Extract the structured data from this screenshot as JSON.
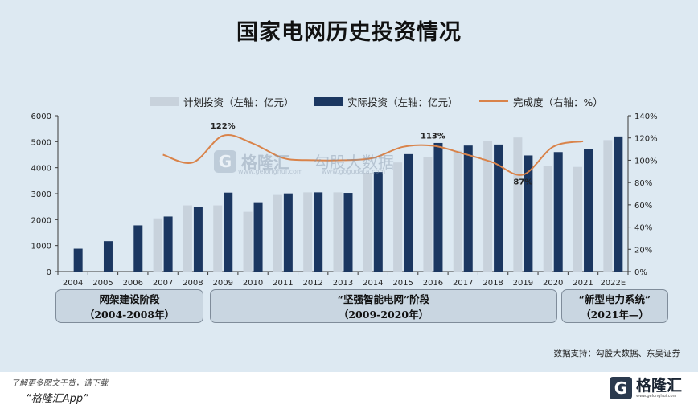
{
  "title": "国家电网历史投资情况",
  "legend": {
    "plan": "计划投资（左轴：亿元）",
    "actual": "实际投资（左轴：亿元）",
    "rate": "完成度（右轴：%）"
  },
  "colors": {
    "plan": "#c8d2dc",
    "actual": "#1b3761",
    "rate": "#d9834a",
    "panel": "#dde9f2"
  },
  "watermark": {
    "logo": "G",
    "brand": "格隆汇",
    "brand_url": "www.gelonghui.com",
    "partner": "勾股大数据",
    "partner_url": "www.gogudata.com"
  },
  "phases": [
    {
      "line1": "网架建设阶段",
      "line2": "（2004-2008年）"
    },
    {
      "line1": "“坚强智能电网”阶段",
      "line2": "（2009-2020年）"
    },
    {
      "line1": "“新型电力系统”",
      "line2": "（2021年—）"
    }
  ],
  "source": "数据支持：勾股大数据、东吴证券",
  "footer": {
    "line1": "了解更多图文干货，请下载",
    "line2": "“格隆汇App”"
  },
  "brand": {
    "logo": "G",
    "name": "格隆汇",
    "url": "www.gelonghui.com"
  },
  "chart_data": {
    "type": "bar",
    "categories": [
      "2004",
      "2005",
      "2006",
      "2007",
      "2008",
      "2009",
      "2010",
      "2011",
      "2012",
      "2013",
      "2014",
      "2015",
      "2016",
      "2017",
      "2018",
      "2019",
      "2020",
      "2021",
      "2022E"
    ],
    "series": [
      {
        "name": "计划投资（左轴：亿元）",
        "type": "bar",
        "axis": "left",
        "values": [
          null,
          null,
          null,
          2050,
          2550,
          2550,
          2300,
          2950,
          3050,
          3050,
          3800,
          4200,
          4400,
          4650,
          5030,
          5160,
          4080,
          4030,
          5060
        ]
      },
      {
        "name": "实际投资（左轴：亿元）",
        "type": "bar",
        "axis": "left",
        "values": [
          880,
          1170,
          1780,
          2120,
          2490,
          3040,
          2640,
          3010,
          3050,
          3030,
          3830,
          4520,
          4950,
          4850,
          4890,
          4470,
          4600,
          4720,
          5200
        ]
      },
      {
        "name": "完成度（右轴：%）",
        "type": "line",
        "axis": "right",
        "values": [
          null,
          null,
          null,
          105,
          98,
          122,
          115,
          102,
          100,
          100,
          102,
          112,
          113,
          106,
          98,
          87,
          112,
          117,
          null
        ]
      }
    ],
    "data_labels": [
      {
        "category": "2009",
        "text": "122%"
      },
      {
        "category": "2016",
        "text": "113%"
      },
      {
        "category": "2019",
        "text": "87%"
      }
    ],
    "y_left": {
      "min": 0,
      "max": 6000,
      "ticks": [
        "0",
        "1000",
        "2000",
        "3000",
        "4000",
        "5000",
        "6000"
      ]
    },
    "y_right": {
      "min": 0,
      "max": 140,
      "ticks": [
        "0%",
        "20%",
        "40%",
        "60%",
        "80%",
        "100%",
        "120%",
        "140%"
      ]
    },
    "grid": false,
    "legend_position": "top"
  }
}
